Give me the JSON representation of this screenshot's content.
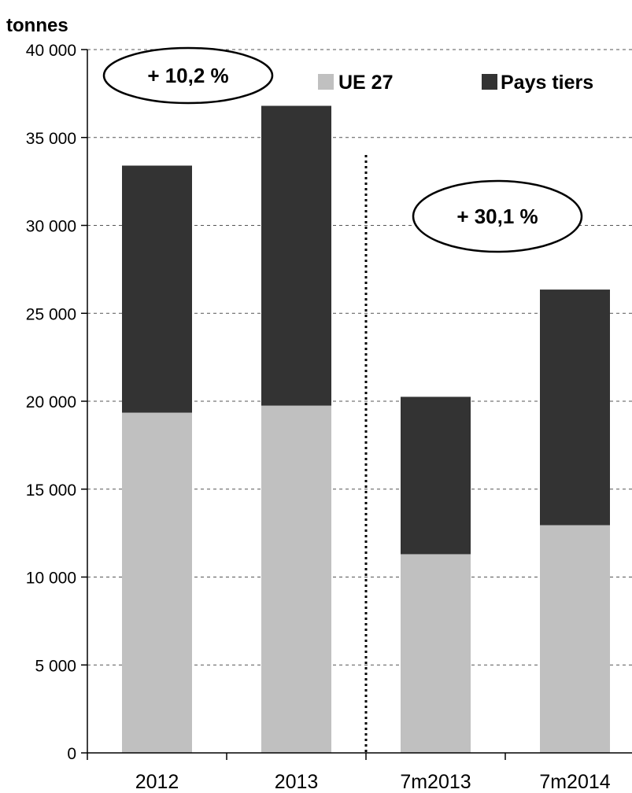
{
  "chart_data": {
    "type": "bar",
    "stacked": true,
    "ylabel": "tonnes",
    "ylim": [
      0,
      40000
    ],
    "yticks": [
      0,
      5000,
      10000,
      15000,
      20000,
      25000,
      30000,
      35000,
      40000
    ],
    "ytick_labels": [
      "0",
      "5 000",
      "10 000",
      "15 000",
      "20 000",
      "25 000",
      "30 000",
      "35 000",
      "40 000"
    ],
    "categories": [
      "2012",
      "2013",
      "7m2013",
      "7m2014"
    ],
    "series": [
      {
        "name": "UE 27",
        "color": "#c0c0c0",
        "values": [
          19350,
          19750,
          11300,
          12950
        ]
      },
      {
        "name": "Pays tiers",
        "color": "#333333",
        "values": [
          14050,
          17050,
          8950,
          13400
        ]
      }
    ],
    "grid": true,
    "legend_position": "top-right",
    "separator_after_category": 1,
    "annotations": [
      {
        "text": "+ 10,2 %",
        "categories": [
          "2012",
          "2013"
        ]
      },
      {
        "text": "+ 30,1 %",
        "categories": [
          "7m2013",
          "7m2014"
        ]
      }
    ]
  }
}
